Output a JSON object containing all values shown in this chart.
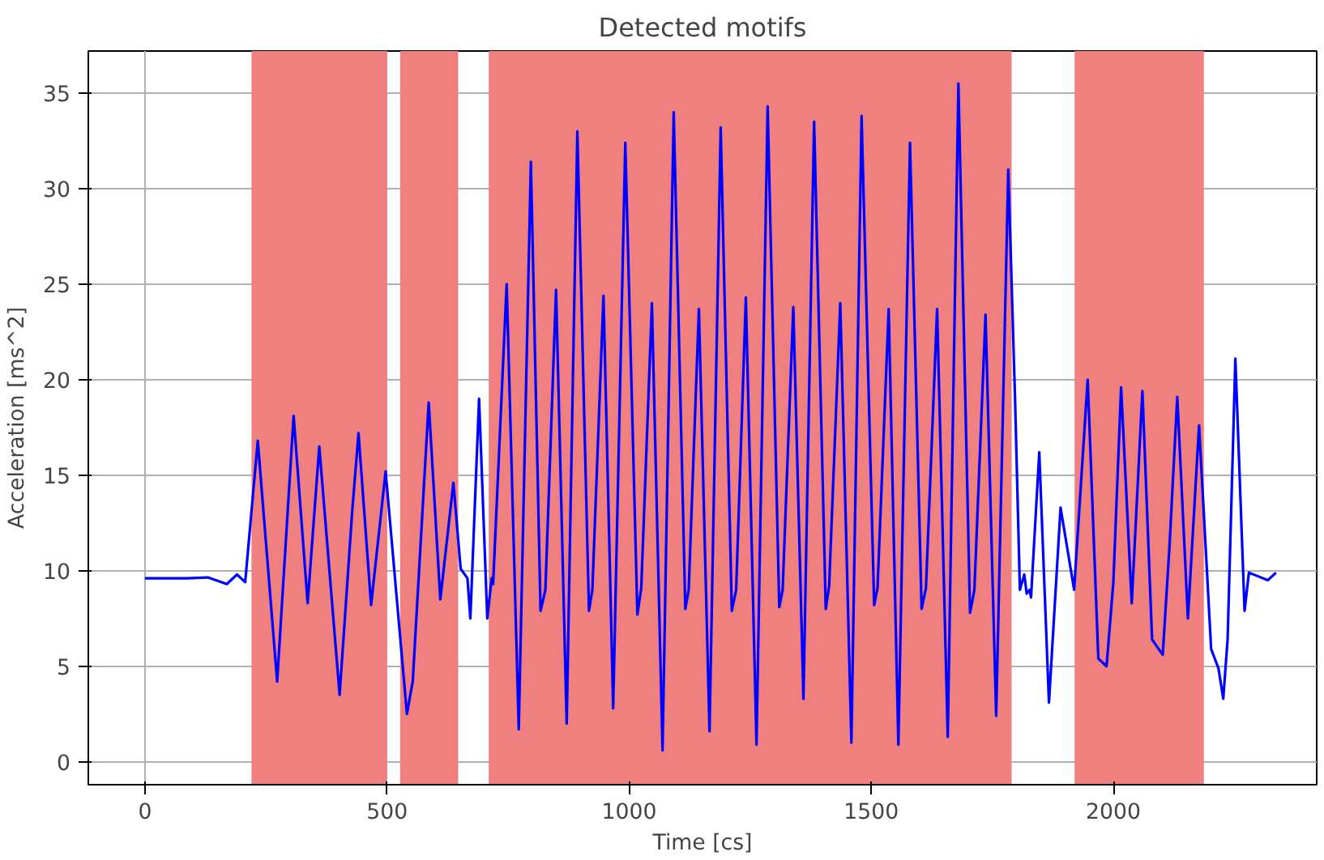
{
  "chart_data": {
    "type": "line",
    "title": "Detected motifs",
    "xlabel": "Time [cs]",
    "ylabel": "Acceleration [ms^2]",
    "xlim": [
      -117,
      2420
    ],
    "ylim": [
      -1.2,
      37.2
    ],
    "xticks": [
      0,
      500,
      1000,
      1500,
      2000
    ],
    "yticks": [
      0,
      5,
      10,
      15,
      20,
      25,
      30,
      35
    ],
    "grid": true,
    "bands": [
      {
        "axis": "x",
        "from": 220,
        "to": 500,
        "color": "#f08080"
      },
      {
        "axis": "x",
        "from": 527,
        "to": 647,
        "color": "#f08080"
      },
      {
        "axis": "x",
        "from": 710,
        "to": 1790,
        "color": "#f08080"
      },
      {
        "axis": "x",
        "from": 1920,
        "to": 2187,
        "color": "#f08080"
      }
    ],
    "series": [
      {
        "color": "#0000ff",
        "x": [
          0,
          86,
          130,
          169,
          190,
          207,
          233,
          273,
          307,
          336,
          360,
          402,
          428,
          441,
          467,
          497,
          541,
          553,
          586,
          610,
          637,
          652,
          666,
          672,
          690,
          707,
          716,
          719,
          747,
          772,
          797,
          817,
          827,
          849,
          871,
          893,
          917,
          924,
          947,
          967,
          992,
          1017,
          1025,
          1047,
          1069,
          1092,
          1116,
          1123,
          1144,
          1166,
          1189,
          1212,
          1221,
          1241,
          1263,
          1286,
          1310,
          1317,
          1339,
          1360,
          1382,
          1406,
          1413,
          1436,
          1459,
          1480,
          1506,
          1513,
          1536,
          1556,
          1580,
          1604,
          1613,
          1636,
          1658,
          1680,
          1704,
          1713,
          1736,
          1758,
          1783,
          1797,
          1807,
          1816,
          1821,
          1827,
          1830,
          1847,
          1867,
          1891,
          1919,
          1947,
          1969,
          1986,
          2000,
          2016,
          2038,
          2060,
          2080,
          2102,
          2116,
          2132,
          2154,
          2177,
          2202,
          2217,
          2227,
          2236,
          2252,
          2271,
          2280,
          2319,
          2336
        ],
        "values": [
          9.6,
          9.6,
          9.65,
          9.3,
          9.8,
          9.4,
          16.8,
          4.2,
          18.1,
          8.3,
          16.5,
          3.5,
          13.1,
          17.2,
          8.2,
          15.2,
          2.5,
          4.2,
          18.8,
          8.5,
          14.6,
          10.1,
          9.6,
          7.5,
          19.0,
          7.5,
          9.6,
          9.3,
          25.0,
          1.7,
          31.4,
          7.9,
          9.0,
          24.7,
          2.0,
          33.0,
          7.9,
          9.0,
          24.4,
          2.8,
          32.4,
          7.7,
          9.1,
          24.0,
          0.6,
          34.0,
          8.0,
          9.0,
          23.7,
          1.6,
          33.2,
          7.9,
          9.0,
          24.3,
          0.9,
          34.3,
          8.1,
          9.0,
          23.8,
          3.3,
          33.5,
          8.0,
          9.2,
          24.0,
          1.0,
          33.8,
          8.2,
          9.1,
          23.7,
          0.9,
          32.4,
          8.0,
          9.1,
          23.7,
          1.3,
          35.5,
          7.8,
          9.0,
          23.4,
          2.4,
          31.0,
          19.0,
          9.0,
          9.8,
          8.8,
          9.0,
          8.6,
          16.2,
          3.1,
          13.3,
          9.0,
          20.0,
          5.4,
          5.0,
          9.4,
          19.6,
          8.3,
          19.4,
          6.4,
          5.6,
          11.3,
          19.1,
          7.5,
          17.6,
          5.9,
          4.9,
          3.3,
          6.4,
          21.1,
          7.9,
          9.9,
          9.5,
          9.9
        ]
      }
    ]
  }
}
